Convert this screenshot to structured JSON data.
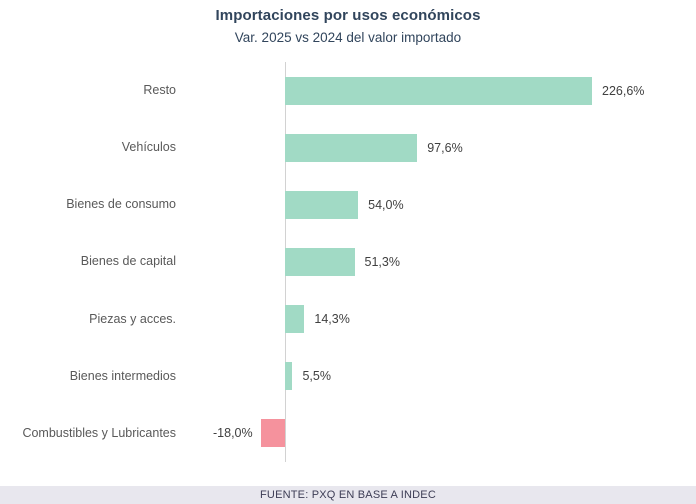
{
  "header": {
    "title": "Importaciones por usos económicos",
    "subtitle": "Var. 2025 vs 2024 del valor importado"
  },
  "chart_data": {
    "type": "bar",
    "orientation": "horizontal",
    "title": "Importaciones por usos económicos",
    "subtitle": "Var. 2025 vs 2024 del valor importado",
    "categories": [
      "Resto",
      "Vehículos",
      "Bienes de consumo",
      "Bienes de capital",
      "Piezas y acces.",
      "Bienes intermedios",
      "Combustibles y Lubricantes"
    ],
    "values": [
      226.6,
      97.6,
      54.0,
      51.3,
      14.3,
      5.5,
      -18.0
    ],
    "value_labels": [
      "226,6%",
      "97,6%",
      "54,0%",
      "51,3%",
      "14,3%",
      "5,5%",
      "-18,0%"
    ],
    "unit": "%",
    "value_axis_visible": false,
    "grid": false,
    "legend": "none",
    "xlim": [
      -30,
      300
    ],
    "colors": {
      "positive_bar": "#a1dac5",
      "negative_bar": "#f5929d",
      "axis_line": "#d2d2d2",
      "title_text": "#31455c",
      "label_text": "#595959",
      "value_text": "#404040"
    }
  },
  "footer": {
    "source_label": "FUENTE: PXQ EN BASE A INDEC"
  }
}
